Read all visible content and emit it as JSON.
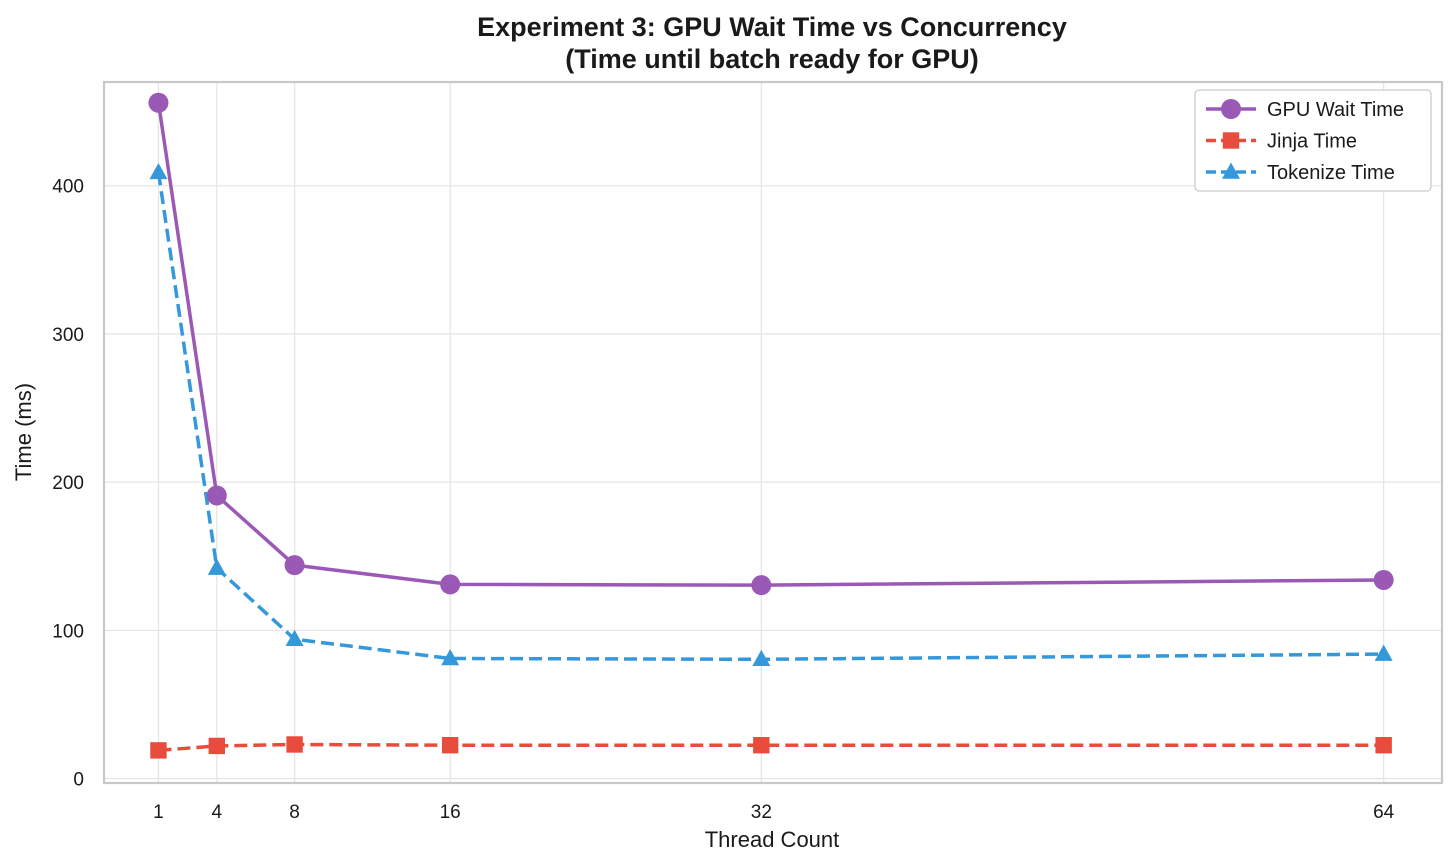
{
  "chart_data": {
    "type": "line",
    "title_line1": "Experiment 3: GPU Wait Time vs Concurrency",
    "title_line2": "(Time until batch ready for GPU)",
    "xlabel": "Thread Count",
    "ylabel": "Time (ms)",
    "x": [
      1,
      4,
      8,
      16,
      32,
      64
    ],
    "x_ticks": [
      1,
      4,
      8,
      16,
      32,
      64
    ],
    "y_ticks": [
      0,
      100,
      200,
      300,
      400
    ],
    "xlim": [
      -1.8,
      67.0
    ],
    "ylim": [
      -3,
      470
    ],
    "grid": true,
    "legend_position": "top-right",
    "series": [
      {
        "name": "GPU Wait Time",
        "color": "#9b59b6",
        "marker": "circle",
        "linestyle": "solid",
        "values": [
          456,
          191,
          144,
          131,
          130.5,
          134
        ]
      },
      {
        "name": "Jinja Time",
        "color": "#e74c3c",
        "marker": "square",
        "linestyle": "dashed",
        "values": [
          19,
          22,
          23,
          22.5,
          22.5,
          22.5
        ]
      },
      {
        "name": "Tokenize Time",
        "color": "#3498db",
        "marker": "triangle",
        "linestyle": "dashed",
        "values": [
          409,
          142,
          94,
          81,
          80.5,
          84
        ]
      }
    ]
  }
}
